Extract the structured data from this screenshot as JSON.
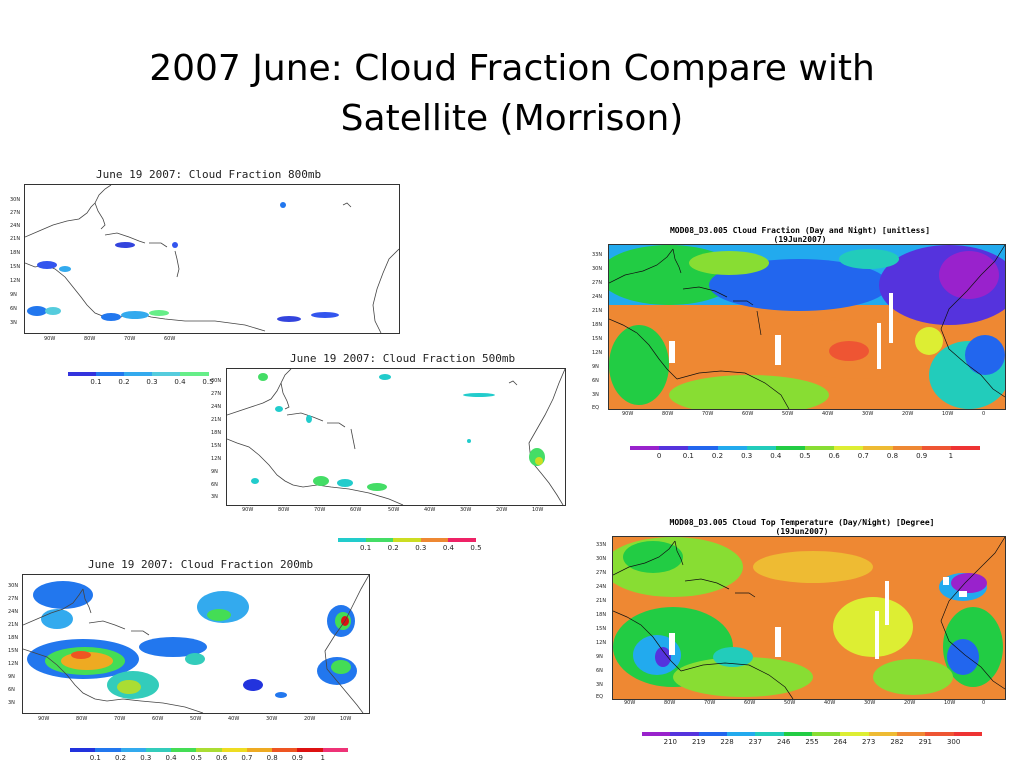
{
  "slide": {
    "title_line1": "2007 June: Cloud Fraction Compare with",
    "title_line2": "Satellite (Morrison)"
  },
  "map_labels": {
    "latitudes": [
      "30N",
      "27N",
      "24N",
      "21N",
      "18N",
      "15N",
      "12N",
      "9N",
      "6N",
      "3N"
    ],
    "latitudes_modis": [
      "33N",
      "30N",
      "27N",
      "24N",
      "21N",
      "18N",
      "15N",
      "12N",
      "9N",
      "6N",
      "3N",
      "EQ"
    ],
    "longitudes_800": [
      "90W",
      "80W",
      "70W",
      "60W"
    ],
    "longitudes_full": [
      "90W",
      "80W",
      "70W",
      "60W",
      "50W",
      "40W",
      "30W",
      "20W",
      "10W"
    ],
    "longitudes_modis": [
      "90W",
      "80W",
      "70W",
      "60W",
      "50W",
      "40W",
      "30W",
      "20W",
      "10W",
      "0"
    ]
  },
  "panels": {
    "p800": {
      "title": "June 19 2007: Cloud Fraction 800mb",
      "colorbar": {
        "labels": [
          "0.1",
          "0.2",
          "0.3",
          "0.4",
          "0.5"
        ],
        "colors": [
          "#3333dd",
          "#2277ee",
          "#33aaee",
          "#55ccdd",
          "#66ee88"
        ]
      }
    },
    "p500": {
      "title": "June 19 2007: Cloud Fraction 500mb",
      "colorbar": {
        "labels": [
          "0.1",
          "0.2",
          "0.3",
          "0.4",
          "0.5"
        ],
        "colors": [
          "#22cccc",
          "#44dd66",
          "#ccdd22",
          "#ee8833",
          "#ee2266"
        ]
      }
    },
    "p200": {
      "title": "June 19 2007: Cloud Fraction 200mb",
      "colorbar": {
        "labels": [
          "0.1",
          "0.2",
          "0.3",
          "0.4",
          "0.5",
          "0.6",
          "0.7",
          "0.8",
          "0.9",
          "1"
        ],
        "colors": [
          "#2233dd",
          "#2277ee",
          "#33aaee",
          "#33ccbb",
          "#44dd55",
          "#aadd33",
          "#eedd22",
          "#eeaa22",
          "#ee5522",
          "#dd1111",
          "#ee3377"
        ]
      }
    },
    "modis_cf": {
      "title_line1": "MOD08_D3.005 Cloud Fraction (Day and Night) [unitless]",
      "title_line2": "(19Jun2007)",
      "colorbar": {
        "labels": [
          "0",
          "0.1",
          "0.2",
          "0.3",
          "0.4",
          "0.5",
          "0.6",
          "0.7",
          "0.8",
          "0.9",
          "1"
        ],
        "colors": [
          "#9922cc",
          "#5533dd",
          "#2266ee",
          "#22aaee",
          "#22ccbb",
          "#22cc44",
          "#88dd33",
          "#ddee33",
          "#eebb33",
          "#ee8833",
          "#ee5533",
          "#ee3333"
        ]
      }
    },
    "modis_ctt": {
      "title_line1": "MOD08_D3.005 Cloud Top Temperature (Day/Night) [Degree]",
      "title_line2": "(19Jun2007)",
      "colorbar": {
        "labels": [
          "210",
          "219",
          "228",
          "237",
          "246",
          "255",
          "264",
          "273",
          "282",
          "291",
          "300"
        ],
        "colors": [
          "#9922cc",
          "#5533dd",
          "#2266ee",
          "#22aaee",
          "#22ccbb",
          "#22cc44",
          "#88dd33",
          "#ddee33",
          "#eebb33",
          "#ee8833",
          "#ee5533",
          "#ee3333"
        ]
      }
    }
  }
}
